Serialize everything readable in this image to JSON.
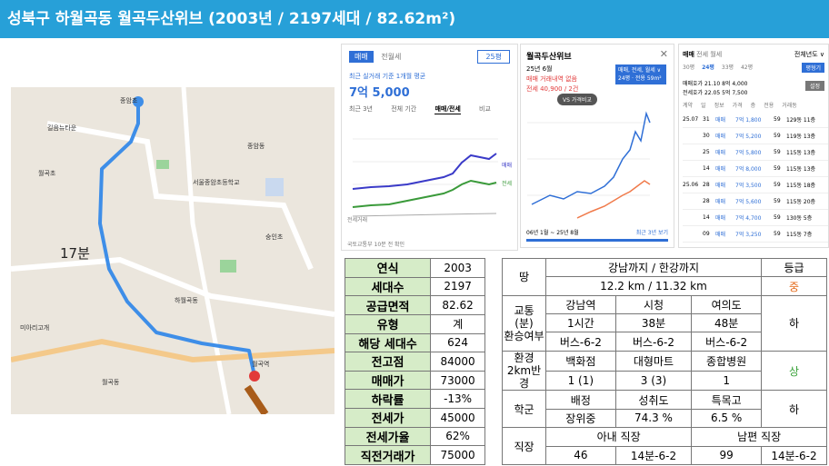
{
  "header": {
    "title": "성북구 하월곡동 월곡두산위브 (2003년 / 2197세대 / 82.62m²)"
  },
  "map": {
    "walk_time": "17분",
    "labels": [
      "월곡역",
      "종암초",
      "서울종암초등학교",
      "월곡초",
      "숭인초",
      "미아리고개",
      "길음뉴타운",
      "하월곡동",
      "종암동",
      "월곡동"
    ]
  },
  "price_panel": {
    "tabs": [
      "매매",
      "전월세"
    ],
    "size_select": "25평",
    "subtitle": "최근 실거래 기준 1개월 평균",
    "price": "7억 5,000",
    "nav": [
      "최근 3년",
      "전체 기간",
      "매매/전세",
      "비교"
    ],
    "legend": [
      "매매",
      "전세"
    ],
    "source": "국토교통부 10분 전 확인",
    "volume_label": "전세거래"
  },
  "complex_panel": {
    "title": "월곡두산위브",
    "date": "25년 6월",
    "note": "매매 거래내역 없음",
    "subnote": "전세 40,900 / 2건",
    "badge": "매매, 전세, 월세 ∨",
    "badge2": "24평 · 전용 59m²",
    "compare": "VS 가격비교",
    "range": "06년 1월 ~ 25년 8월",
    "recent": "최근 3년 보기"
  },
  "trade_panel": {
    "tabs": [
      "매매",
      "전세",
      "월세"
    ],
    "filter": "전체년도 ∨",
    "sizes": [
      "30평",
      "24평",
      "33평",
      "42평"
    ],
    "quote1": "매매호가 21.10 8억 4,000",
    "quote2": "전세호가 22.05 5억 7,500",
    "setting": "설정",
    "apply": "평형기",
    "columns": [
      "계약",
      "일",
      "정보",
      "가격",
      "층",
      "전용",
      "거래동"
    ],
    "rows": [
      {
        "month": "25.07",
        "day": "31",
        "type": "매매",
        "price": "7억 1,800",
        "area": "59",
        "floor": "129동 11층"
      },
      {
        "month": "",
        "day": "30",
        "type": "매매",
        "price": "7억 5,200",
        "area": "59",
        "floor": "119동 13층"
      },
      {
        "month": "",
        "day": "25",
        "type": "매매",
        "price": "7억 5,800",
        "area": "59",
        "floor": "115동 13층"
      },
      {
        "month": "",
        "day": "14",
        "type": "매매",
        "price": "7억 8,000",
        "area": "59",
        "floor": "115동 13층"
      },
      {
        "month": "25.06",
        "day": "28",
        "type": "매매",
        "price": "7억 3,500",
        "area": "59",
        "floor": "115동 18층"
      },
      {
        "month": "",
        "day": "28",
        "type": "매매",
        "price": "7억 5,600",
        "area": "59",
        "floor": "115동 20층"
      },
      {
        "month": "",
        "day": "14",
        "type": "매매",
        "price": "7억 4,700",
        "area": "59",
        "floor": "130동 5층"
      },
      {
        "month": "",
        "day": "09",
        "type": "매매",
        "price": "7억 3,250",
        "area": "59",
        "floor": "115동 7층"
      }
    ]
  },
  "stats": [
    {
      "label": "연식",
      "value": "2003"
    },
    {
      "label": "세대수",
      "value": "2197"
    },
    {
      "label": "공급면적",
      "value": "82.62"
    },
    {
      "label": "유형",
      "value": "계"
    },
    {
      "label": "해당 세대수",
      "value": "624"
    },
    {
      "label": "전고점",
      "value": "84000"
    },
    {
      "label": "매매가",
      "value": "73000"
    },
    {
      "label": "하락률",
      "value": "-13%"
    },
    {
      "label": "전세가",
      "value": "45000"
    },
    {
      "label": "전세가율",
      "value": "62%"
    },
    {
      "label": "직전거래가",
      "value": "75000"
    }
  ],
  "eval": {
    "land_label": "땅",
    "land_header": "강남까지 / 한강까지",
    "grade_header": "등급",
    "distance": "12.2 km / 11.32 km",
    "land_grade": "중",
    "traffic_label": "교통\n(분)\n환승여부",
    "stations": [
      "강남역",
      "시청",
      "여의도"
    ],
    "times": [
      "1시간",
      "38분",
      "48분"
    ],
    "transfer": [
      "버스-6-2",
      "버스-6-2",
      "버스-6-2"
    ],
    "traffic_grade": "하",
    "env_label": "환경\n2km반경",
    "env_items": [
      "백화점",
      "대형마트",
      "종합병원"
    ],
    "env_counts": [
      "1 (1)",
      "3 (3)",
      "1"
    ],
    "env_grade": "상",
    "school_label": "학군",
    "school_items": [
      "배정",
      "성취도",
      "특목고"
    ],
    "school_values": [
      "장위중",
      "74.3 %",
      "6.5 %"
    ],
    "school_grade": "하",
    "job_label": "직장",
    "wife": "아내 직장",
    "husband": "남편 직장",
    "wife_vals": [
      "46",
      "14분-6-2"
    ],
    "husband_vals": [
      "99",
      "14분-6-2"
    ]
  }
}
